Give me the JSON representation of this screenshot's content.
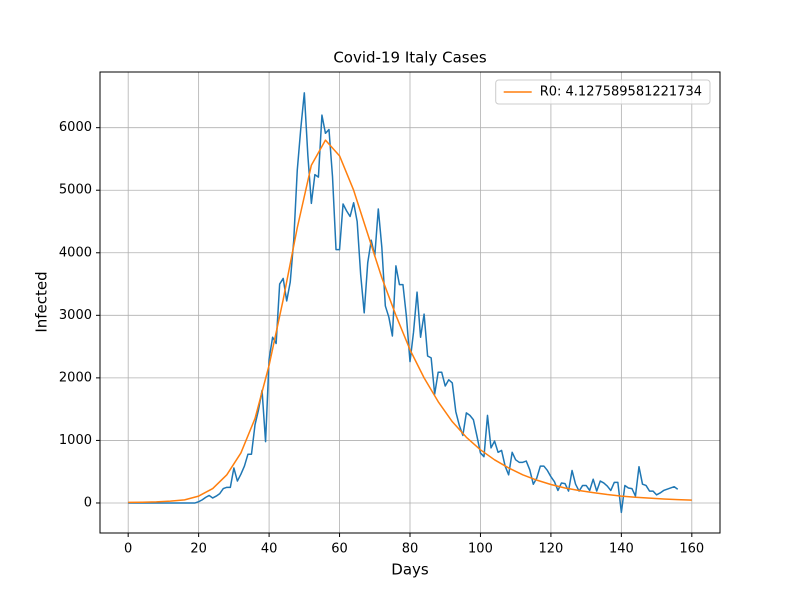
{
  "chart_data": {
    "type": "line",
    "title": "Covid-19 Italy Cases",
    "xlabel": "Days",
    "ylabel": "Infected",
    "xlim": [
      -8,
      168
    ],
    "xticks": [
      0,
      20,
      40,
      60,
      80,
      100,
      120,
      140,
      160
    ],
    "ylim": [
      -480,
      6890
    ],
    "yticks": [
      0,
      1000,
      2000,
      3000,
      4000,
      5000,
      6000
    ],
    "grid": true,
    "legend": "upper right",
    "series": [
      {
        "color": "#1f77b4",
        "x": [
          0,
          1,
          2,
          3,
          4,
          5,
          6,
          7,
          8,
          9,
          10,
          11,
          12,
          13,
          14,
          15,
          16,
          17,
          18,
          19,
          20,
          21,
          22,
          23,
          24,
          25,
          26,
          27,
          28,
          29,
          30,
          31,
          32,
          33,
          34,
          35,
          36,
          37,
          38,
          39,
          40,
          41,
          42,
          43,
          44,
          45,
          46,
          47,
          48,
          49,
          50,
          51,
          52,
          53,
          54,
          55,
          56,
          57,
          58,
          59,
          60,
          61,
          62,
          63,
          64,
          65,
          66,
          67,
          68,
          69,
          70,
          71,
          72,
          73,
          74,
          75,
          76,
          77,
          78,
          79,
          80,
          81,
          82,
          83,
          84,
          85,
          86,
          87,
          88,
          89,
          90,
          91,
          92,
          93,
          94,
          95,
          96,
          97,
          98,
          99,
          100,
          101,
          102,
          103,
          104,
          105,
          106,
          107,
          108,
          109,
          110,
          111,
          112,
          113,
          114,
          115,
          116,
          117,
          118,
          119,
          120,
          121,
          122,
          123,
          124,
          125,
          126,
          127,
          128,
          129,
          130,
          131,
          132,
          133,
          134,
          135,
          136,
          137,
          138,
          139,
          140,
          141,
          142,
          143,
          144,
          145,
          146,
          147,
          148,
          149,
          150,
          151,
          152,
          153,
          154,
          155,
          156
        ],
        "values": [
          0,
          0,
          0,
          0,
          0,
          0,
          0,
          0,
          0,
          0,
          0,
          0,
          0,
          0,
          0,
          0,
          0,
          0,
          0,
          0,
          20,
          50,
          90,
          120,
          80,
          110,
          150,
          230,
          250,
          250,
          560,
          350,
          460,
          590,
          780,
          780,
          1250,
          1490,
          1800,
          980,
          2300,
          2650,
          2550,
          3500,
          3590,
          3230,
          3530,
          4200,
          5320,
          5990,
          6557,
          5560,
          4790,
          5250,
          5210,
          6200,
          5910,
          5970,
          5220,
          4050,
          4050,
          4780,
          4670,
          4580,
          4800,
          4500,
          3650,
          3040,
          3840,
          4200,
          3950,
          4700,
          4090,
          3150,
          2970,
          2670,
          3790,
          3490,
          3490,
          2970,
          2260,
          2730,
          3370,
          2650,
          3020,
          2350,
          2320,
          1740,
          2090,
          2090,
          1870,
          1970,
          1920,
          1460,
          1240,
          1080,
          1440,
          1400,
          1330,
          1070,
          800,
          740,
          1400,
          880,
          990,
          810,
          840,
          590,
          450,
          810,
          690,
          650,
          650,
          670,
          530,
          300,
          400,
          590,
          590,
          520,
          420,
          340,
          200,
          320,
          310,
          190,
          520,
          300,
          190,
          280,
          280,
          200,
          380,
          190,
          350,
          320,
          270,
          200,
          330,
          330,
          -150,
          280,
          240,
          230,
          110,
          580,
          300,
          280,
          190,
          190,
          130,
          160,
          200,
          220,
          240,
          260,
          220
        ]
      },
      {
        "name": "R0: 4.127589581221734",
        "color": "#ff7f0e",
        "x": [
          0,
          4,
          8,
          12,
          16,
          20,
          24,
          28,
          32,
          36,
          40,
          44,
          48,
          52,
          56,
          60,
          64,
          68,
          72,
          76,
          80,
          84,
          88,
          92,
          96,
          100,
          104,
          108,
          112,
          116,
          120,
          124,
          128,
          132,
          136,
          140,
          144,
          148,
          152,
          156,
          160
        ],
        "values": [
          10,
          12,
          18,
          30,
          50,
          110,
          230,
          450,
          800,
          1350,
          2200,
          3250,
          4400,
          5400,
          5800,
          5550,
          5000,
          4300,
          3600,
          3000,
          2450,
          2000,
          1620,
          1300,
          1050,
          850,
          690,
          560,
          450,
          365,
          295,
          240,
          200,
          165,
          135,
          110,
          92,
          77,
          64,
          54,
          45
        ]
      }
    ]
  }
}
